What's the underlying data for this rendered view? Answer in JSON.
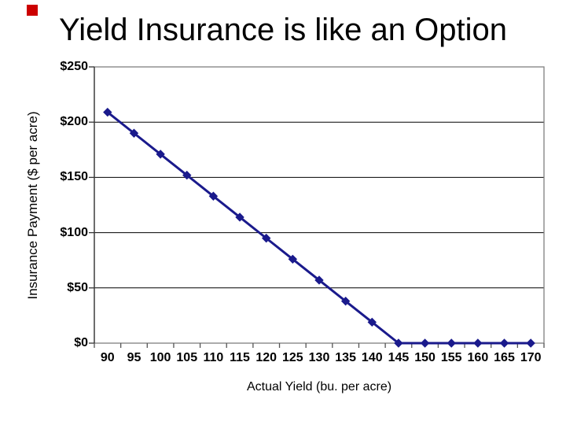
{
  "slide": {
    "title": "Yield Insurance is like an Option",
    "accent_color": "#cc0000",
    "background_color": "#ffffff"
  },
  "chart_data": {
    "type": "line",
    "title": "",
    "xlabel": "Actual Yield (bu. per acre)",
    "ylabel": "Insurance Payment ($ per acre)",
    "categories": [
      "90",
      "95",
      "100",
      "105",
      "110",
      "115",
      "120",
      "125",
      "130",
      "135",
      "140",
      "145",
      "150",
      "155",
      "160",
      "165",
      "170"
    ],
    "series": [
      {
        "name": "Insurance Payment",
        "values": [
          209,
          190,
          171,
          152,
          133,
          114,
          95,
          76,
          57,
          38,
          19,
          0,
          0,
          0,
          0,
          0,
          0
        ]
      }
    ],
    "ylim": [
      0,
      250
    ],
    "ytick_values": [
      0,
      50,
      100,
      150,
      200,
      250
    ],
    "ytick_labels": [
      "$0",
      "$50",
      "$100",
      "$150",
      "$200",
      "$250"
    ],
    "grid": "horizontal-only",
    "legend": "none",
    "marker": "diamond",
    "line_color": "#1a1a8c",
    "marker_color": "#1a1a8c",
    "grid_color": "#000000",
    "frame_color": "#808080",
    "axis_text_color": "#000000"
  }
}
